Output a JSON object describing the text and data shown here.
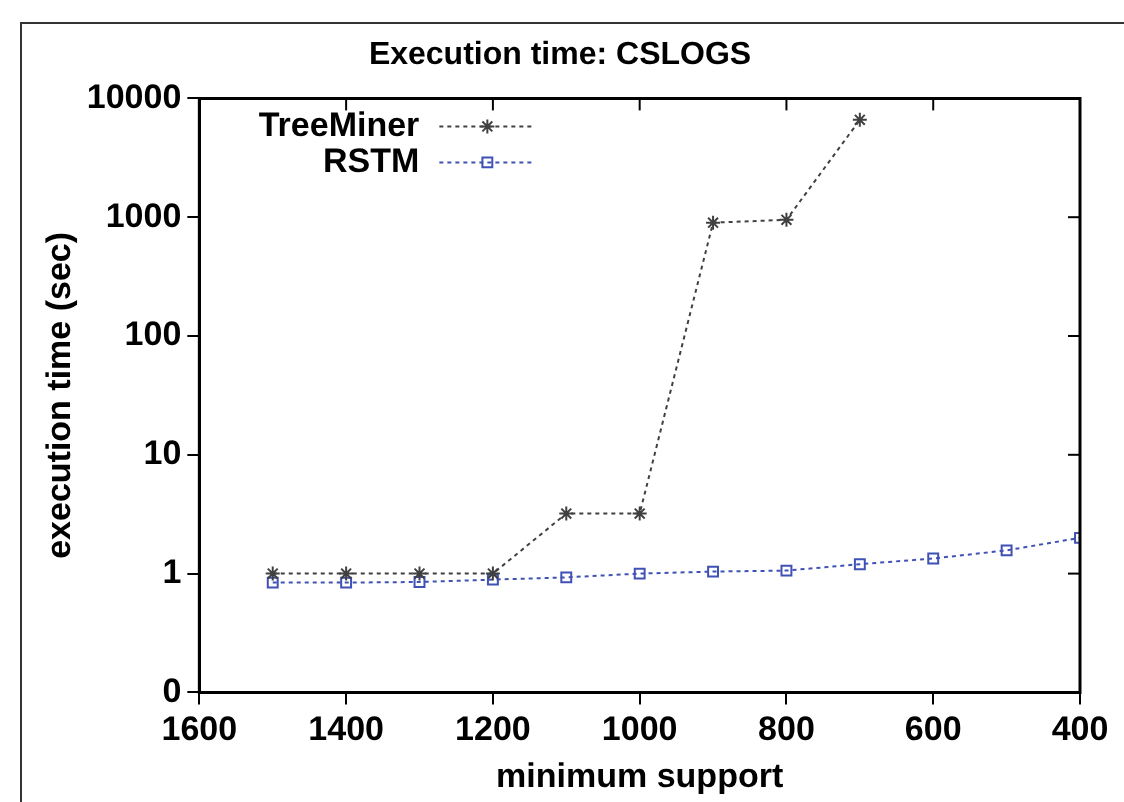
{
  "chart_data": {
    "type": "line",
    "title": "Execution time: CSLOGS",
    "xlabel": "minimum support",
    "ylabel": "execution time (sec)",
    "x": [
      1500,
      1400,
      1300,
      1200,
      1100,
      1000,
      900,
      800,
      700,
      600,
      500,
      400
    ],
    "series": [
      {
        "name": "TreeMiner",
        "color": "#404040",
        "marker": "cross",
        "values": [
          1.0,
          1.0,
          1.0,
          1.0,
          3.2,
          3.2,
          900,
          950,
          6600,
          null,
          null,
          null
        ]
      },
      {
        "name": "RSTM",
        "color": "#3f51b5",
        "marker": "square",
        "values": [
          0.84,
          0.84,
          0.85,
          0.89,
          0.93,
          1.0,
          1.04,
          1.06,
          1.2,
          1.34,
          1.57,
          2.0
        ]
      }
    ],
    "xlim": [
      1600,
      400
    ],
    "xticks": [
      1600,
      1400,
      1200,
      1000,
      800,
      600,
      400
    ],
    "ylim": [
      0.1,
      10000
    ],
    "yticks": [
      {
        "value": 0.1,
        "label": "0"
      },
      1,
      10,
      100,
      1000,
      10000
    ],
    "log": "y",
    "grid": false,
    "legend": "top left",
    "line_style": "dotted"
  }
}
